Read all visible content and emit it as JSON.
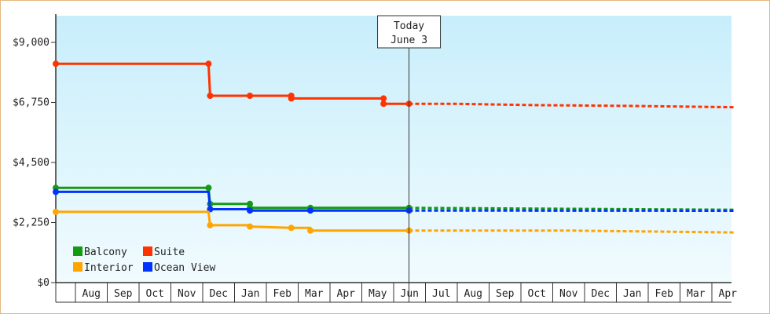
{
  "chart_data": {
    "type": "line",
    "title": "",
    "xlabel": "",
    "ylabel": "",
    "ylim": [
      0,
      10000
    ],
    "y_ticks": [
      {
        "value": 0,
        "label": "$0"
      },
      {
        "value": 2250,
        "label": "$2,250"
      },
      {
        "value": 4500,
        "label": "$4,500"
      },
      {
        "value": 6750,
        "label": "$6,750"
      },
      {
        "value": 9000,
        "label": "$9,000"
      }
    ],
    "x_start": "Jul",
    "months": [
      "Aug",
      "Sep",
      "Oct",
      "Nov",
      "Dec",
      "Jan",
      "Feb",
      "Mar",
      "Apr",
      "May",
      "Jun",
      "Jul",
      "Aug",
      "Sep",
      "Oct",
      "Nov",
      "Dec",
      "Jan",
      "Feb",
      "Mar",
      "Apr"
    ],
    "today": {
      "line1": "Today",
      "line2": "June 3",
      "month_index": 11.1
    },
    "grid": false,
    "legend": {
      "position": "bottom-left",
      "entries": [
        {
          "label": "Balcony",
          "color": "#129c12"
        },
        {
          "label": "Suite",
          "color": "#ff3300"
        },
        {
          "label": "Interior",
          "color": "#ffa500"
        },
        {
          "label": "Ocean View",
          "color": "#0033ff"
        }
      ]
    },
    "series": [
      {
        "name": "Suite",
        "color": "#ff3300",
        "points": [
          [
            0,
            8200
          ],
          [
            4.8,
            8200
          ],
          [
            4.85,
            7000
          ],
          [
            6.1,
            7000
          ],
          [
            7.4,
            7000
          ],
          [
            7.4,
            6900
          ],
          [
            10.3,
            6900
          ],
          [
            10.3,
            6700
          ],
          [
            11.1,
            6700
          ]
        ],
        "markers": [
          [
            0,
            8200
          ],
          [
            4.8,
            8200
          ],
          [
            4.85,
            7000
          ],
          [
            6.1,
            7000
          ],
          [
            7.4,
            7000
          ],
          [
            7.4,
            6900
          ],
          [
            10.3,
            6900
          ],
          [
            10.3,
            6700
          ],
          [
            11.1,
            6700
          ]
        ],
        "forecast": [
          [
            11.1,
            6700
          ],
          [
            12.5,
            6700
          ],
          [
            15,
            6650
          ],
          [
            18,
            6620
          ],
          [
            21.3,
            6570
          ]
        ]
      },
      {
        "name": "Balcony",
        "color": "#129c12",
        "points": [
          [
            0,
            3550
          ],
          [
            4.8,
            3550
          ],
          [
            4.85,
            2950
          ],
          [
            6.1,
            2950
          ],
          [
            6.1,
            2800
          ],
          [
            11.1,
            2800
          ]
        ],
        "markers": [
          [
            0,
            3550
          ],
          [
            4.8,
            3550
          ],
          [
            4.85,
            2950
          ],
          [
            6.1,
            2950
          ],
          [
            6.1,
            2800
          ],
          [
            8.0,
            2800
          ],
          [
            11.1,
            2800
          ]
        ],
        "forecast": [
          [
            11.1,
            2800
          ],
          [
            21.3,
            2730
          ]
        ]
      },
      {
        "name": "Ocean View",
        "color": "#0033ff",
        "points": [
          [
            0,
            3400
          ],
          [
            4.8,
            3400
          ],
          [
            4.85,
            2750
          ],
          [
            6.1,
            2750
          ],
          [
            6.1,
            2700
          ],
          [
            11.1,
            2700
          ]
        ],
        "markers": [
          [
            0,
            3400
          ],
          [
            4.85,
            2750
          ],
          [
            6.1,
            2700
          ],
          [
            8.0,
            2700
          ],
          [
            11.1,
            2700
          ]
        ],
        "forecast": [
          [
            11.1,
            2700
          ],
          [
            21.3,
            2690
          ]
        ]
      },
      {
        "name": "Interior",
        "color": "#ffa500",
        "points": [
          [
            0,
            2650
          ],
          [
            4.8,
            2650
          ],
          [
            4.85,
            2150
          ],
          [
            6.1,
            2150
          ],
          [
            6.1,
            2100
          ],
          [
            7.4,
            2050
          ],
          [
            8.0,
            2050
          ],
          [
            8.0,
            1950
          ],
          [
            11.1,
            1950
          ]
        ],
        "markers": [
          [
            0,
            2650
          ],
          [
            4.85,
            2150
          ],
          [
            6.1,
            2100
          ],
          [
            7.4,
            2050
          ],
          [
            8.0,
            1950
          ],
          [
            11.1,
            1950
          ]
        ],
        "forecast": [
          [
            11.1,
            1950
          ],
          [
            16,
            1950
          ],
          [
            21.3,
            1880
          ]
        ]
      }
    ]
  }
}
